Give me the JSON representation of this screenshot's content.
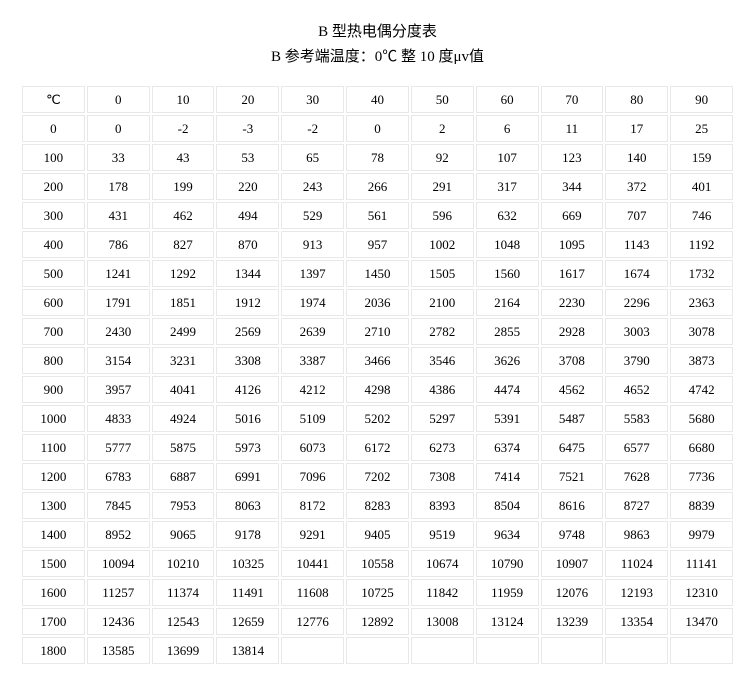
{
  "title": "B 型热电偶分度表",
  "subtitle": "B 参考端温度：0℃  整 10 度μv值",
  "table": {
    "header_unit": "℃",
    "columns": [
      "0",
      "10",
      "20",
      "30",
      "40",
      "50",
      "60",
      "70",
      "80",
      "90"
    ],
    "rows": [
      {
        "label": "0",
        "cells": [
          "0",
          "-2",
          "-3",
          "-2",
          "0",
          "2",
          "6",
          "11",
          "17",
          "25"
        ]
      },
      {
        "label": "100",
        "cells": [
          "33",
          "43",
          "53",
          "65",
          "78",
          "92",
          "107",
          "123",
          "140",
          "159"
        ]
      },
      {
        "label": "200",
        "cells": [
          "178",
          "199",
          "220",
          "243",
          "266",
          "291",
          "317",
          "344",
          "372",
          "401"
        ]
      },
      {
        "label": "300",
        "cells": [
          "431",
          "462",
          "494",
          "529",
          "561",
          "596",
          "632",
          "669",
          "707",
          "746"
        ]
      },
      {
        "label": "400",
        "cells": [
          "786",
          "827",
          "870",
          "913",
          "957",
          "1002",
          "1048",
          "1095",
          "1143",
          "1192"
        ]
      },
      {
        "label": "500",
        "cells": [
          "1241",
          "1292",
          "1344",
          "1397",
          "1450",
          "1505",
          "1560",
          "1617",
          "1674",
          "1732"
        ]
      },
      {
        "label": "600",
        "cells": [
          "1791",
          "1851",
          "1912",
          "1974",
          "2036",
          "2100",
          "2164",
          "2230",
          "2296",
          "2363"
        ]
      },
      {
        "label": "700",
        "cells": [
          "2430",
          "2499",
          "2569",
          "2639",
          "2710",
          "2782",
          "2855",
          "2928",
          "3003",
          "3078"
        ]
      },
      {
        "label": "800",
        "cells": [
          "3154",
          "3231",
          "3308",
          "3387",
          "3466",
          "3546",
          "3626",
          "3708",
          "3790",
          "3873"
        ]
      },
      {
        "label": "900",
        "cells": [
          "3957",
          "4041",
          "4126",
          "4212",
          "4298",
          "4386",
          "4474",
          "4562",
          "4652",
          "4742"
        ]
      },
      {
        "label": "1000",
        "cells": [
          "4833",
          "4924",
          "5016",
          "5109",
          "5202",
          "5297",
          "5391",
          "5487",
          "5583",
          "5680"
        ]
      },
      {
        "label": "1100",
        "cells": [
          "5777",
          "5875",
          "5973",
          "6073",
          "6172",
          "6273",
          "6374",
          "6475",
          "6577",
          "6680"
        ]
      },
      {
        "label": "1200",
        "cells": [
          "6783",
          "6887",
          "6991",
          "7096",
          "7202",
          "7308",
          "7414",
          "7521",
          "7628",
          "7736"
        ]
      },
      {
        "label": "1300",
        "cells": [
          "7845",
          "7953",
          "8063",
          "8172",
          "8283",
          "8393",
          "8504",
          "8616",
          "8727",
          "8839"
        ]
      },
      {
        "label": "1400",
        "cells": [
          "8952",
          "9065",
          "9178",
          "9291",
          "9405",
          "9519",
          "9634",
          "9748",
          "9863",
          "9979"
        ]
      },
      {
        "label": "1500",
        "cells": [
          "10094",
          "10210",
          "10325",
          "10441",
          "10558",
          "10674",
          "10790",
          "10907",
          "11024",
          "11141"
        ]
      },
      {
        "label": "1600",
        "cells": [
          "11257",
          "11374",
          "11491",
          "11608",
          "10725",
          "11842",
          "11959",
          "12076",
          "12193",
          "12310"
        ]
      },
      {
        "label": "1700",
        "cells": [
          "12436",
          "12543",
          "12659",
          "12776",
          "12892",
          "13008",
          "13124",
          "13239",
          "13354",
          "13470"
        ]
      },
      {
        "label": "1800",
        "cells": [
          "13585",
          "13699",
          "13814",
          "",
          "",
          "",
          "",
          "",
          "",
          ""
        ]
      }
    ],
    "border_color": "#e8e8e8",
    "text_color": "#000000",
    "background_color": "#ffffff",
    "cell_font_size": 13,
    "title_font_size": 15
  }
}
